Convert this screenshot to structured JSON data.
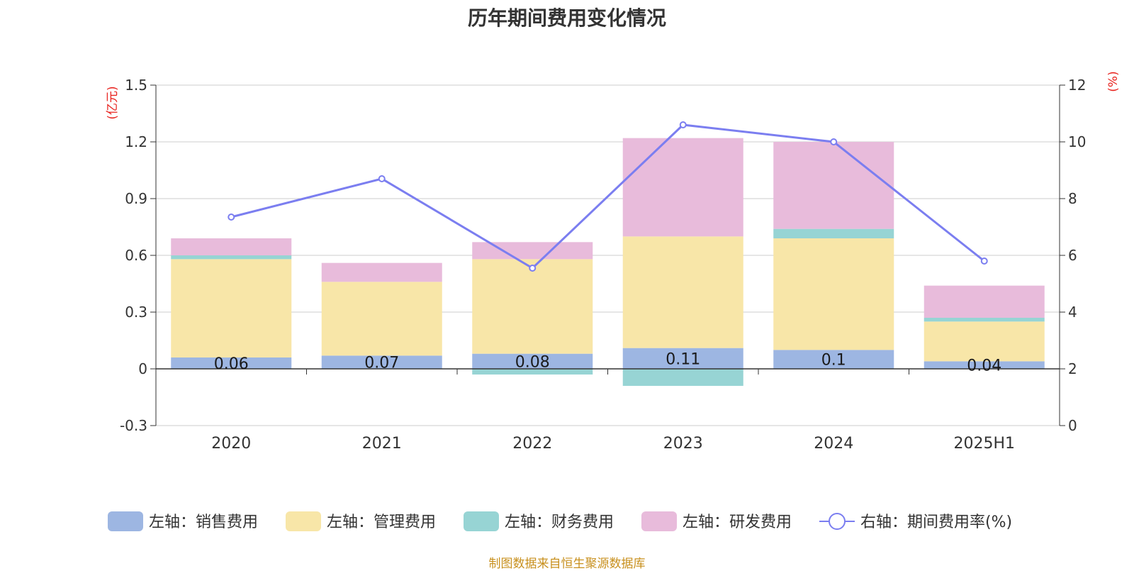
{
  "title": "历年期间费用变化情况",
  "source_note": "制图数据来自恒生聚源数据库",
  "chart_data": {
    "type": "bar",
    "title": "历年期间费用变化情况",
    "categories": [
      "2020",
      "2021",
      "2022",
      "2023",
      "2024",
      "2025H1"
    ],
    "stacked": true,
    "left_axis": {
      "unit": "(亿元)",
      "ylim": [
        -0.3,
        1.5
      ],
      "ticks": [
        "-0.3",
        "0",
        "0.3",
        "0.6",
        "0.9",
        "1.2",
        "1.5"
      ]
    },
    "right_axis": {
      "unit": "(%)",
      "ylim": [
        0,
        12
      ],
      "ticks": [
        "0",
        "2",
        "4",
        "6",
        "8",
        "10",
        "12"
      ]
    },
    "grid": true,
    "legend_position": "bottom",
    "series": [
      {
        "name": "左轴：销售费用",
        "axis": "left",
        "type": "bar",
        "color": "#9db6e2",
        "values": [
          0.06,
          0.07,
          0.08,
          0.11,
          0.1,
          0.04
        ],
        "labels": [
          "0.06",
          "0.07",
          "0.08",
          "0.11",
          "0.1",
          "0.04"
        ]
      },
      {
        "name": "左轴：管理费用",
        "axis": "left",
        "type": "bar",
        "color": "#f8e6a8",
        "values": [
          0.52,
          0.39,
          0.5,
          0.59,
          0.59,
          0.21
        ]
      },
      {
        "name": "左轴：财务费用",
        "axis": "left",
        "type": "bar",
        "color": "#97d4d4",
        "values": [
          0.02,
          0.0,
          -0.03,
          -0.09,
          0.05,
          0.02
        ]
      },
      {
        "name": "左轴：研发费用",
        "axis": "left",
        "type": "bar",
        "color": "#e8bbdb",
        "values": [
          0.09,
          0.1,
          0.09,
          0.52,
          0.46,
          0.17
        ]
      },
      {
        "name": "右轴：期间费用率(%)",
        "axis": "right",
        "type": "line",
        "color": "#7b7ef0",
        "values": [
          7.35,
          8.7,
          5.55,
          10.6,
          10.0,
          5.8
        ]
      }
    ]
  }
}
